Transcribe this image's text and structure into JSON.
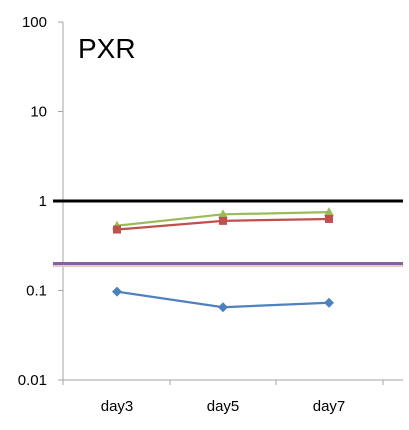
{
  "chart_data": {
    "type": "line",
    "title": "PXR",
    "xlabel": "",
    "ylabel": "",
    "categories": [
      "day3",
      "day5",
      "day7"
    ],
    "y_scale": "log",
    "ylim": [
      0.01,
      100
    ],
    "y_ticks": [
      {
        "value": 100,
        "label": "100"
      },
      {
        "value": 10,
        "label": "10"
      },
      {
        "value": 1,
        "label": "1"
      },
      {
        "value": 0.1,
        "label": "0.1"
      },
      {
        "value": 0.01,
        "label": "0.01"
      }
    ],
    "grid": false,
    "legend": "none",
    "series": [
      {
        "values": [
          0.53,
          0.71,
          0.75
        ],
        "color": "#9bbb59",
        "marker": "triangle"
      },
      {
        "values": [
          0.48,
          0.6,
          0.63
        ],
        "color": "#c0504d",
        "marker": "square"
      },
      {
        "values": [
          0.097,
          0.065,
          0.073
        ],
        "color": "#4f81bd",
        "marker": "diamond"
      }
    ],
    "reference_lines": [
      {
        "value": 1,
        "color": "#000000"
      },
      {
        "value": 0.2,
        "color": "#8064a2"
      }
    ],
    "colors": {
      "axis": "#a6a6a6"
    }
  }
}
